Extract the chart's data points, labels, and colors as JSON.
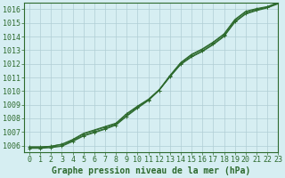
{
  "xlabel": "Graphe pression niveau de la mer (hPa)",
  "ylabel": "",
  "bg_color": "#d6eef2",
  "grid_color": "#b0cdd4",
  "line_color": "#2d6a2d",
  "marker_color": "#2d6a2d",
  "text_color": "#2d6a2d",
  "ylim": [
    1005.5,
    1016.5
  ],
  "xlim": [
    -0.5,
    23
  ],
  "yticks": [
    1006,
    1007,
    1008,
    1009,
    1010,
    1011,
    1012,
    1013,
    1014,
    1015,
    1016
  ],
  "xticks": [
    0,
    1,
    2,
    3,
    4,
    5,
    6,
    7,
    8,
    9,
    10,
    11,
    12,
    13,
    14,
    15,
    16,
    17,
    18,
    19,
    20,
    21,
    22,
    23
  ],
  "series": [
    [
      1005.9,
      1005.9,
      1005.95,
      1006.1,
      1006.4,
      1006.85,
      1007.1,
      1007.35,
      1007.6,
      1008.3,
      1008.85,
      1009.35,
      1010.05,
      1011.05,
      1012.0,
      1012.55,
      1012.95,
      1013.45,
      1014.05,
      1015.1,
      1015.7,
      1015.95,
      1016.15,
      1016.45
    ],
    [
      1005.9,
      1005.9,
      1005.95,
      1006.1,
      1006.45,
      1006.9,
      1007.15,
      1007.4,
      1007.65,
      1008.35,
      1008.9,
      1009.4,
      1010.1,
      1011.05,
      1011.95,
      1012.5,
      1012.9,
      1013.4,
      1014.0,
      1015.05,
      1015.65,
      1015.9,
      1016.1,
      1016.4
    ],
    [
      1005.85,
      1005.85,
      1005.9,
      1006.0,
      1006.35,
      1006.75,
      1007.0,
      1007.25,
      1007.55,
      1008.2,
      1008.8,
      1009.35,
      1010.1,
      1011.15,
      1012.1,
      1012.7,
      1013.1,
      1013.6,
      1014.2,
      1015.25,
      1015.85,
      1016.05,
      1016.2,
      1016.5
    ],
    [
      1005.8,
      1005.8,
      1005.85,
      1005.95,
      1006.3,
      1006.7,
      1006.95,
      1007.2,
      1007.5,
      1008.15,
      1008.75,
      1009.3,
      1010.05,
      1011.1,
      1012.05,
      1012.65,
      1013.05,
      1013.55,
      1014.15,
      1015.2,
      1015.8,
      1016.0,
      1016.15,
      1016.45
    ]
  ],
  "series_markers": [
    true,
    false,
    false,
    true
  ],
  "marker": "+",
  "markersize": 3.5,
  "linewidth": 0.8,
  "xlabel_fontsize": 7,
  "tick_fontsize": 6
}
